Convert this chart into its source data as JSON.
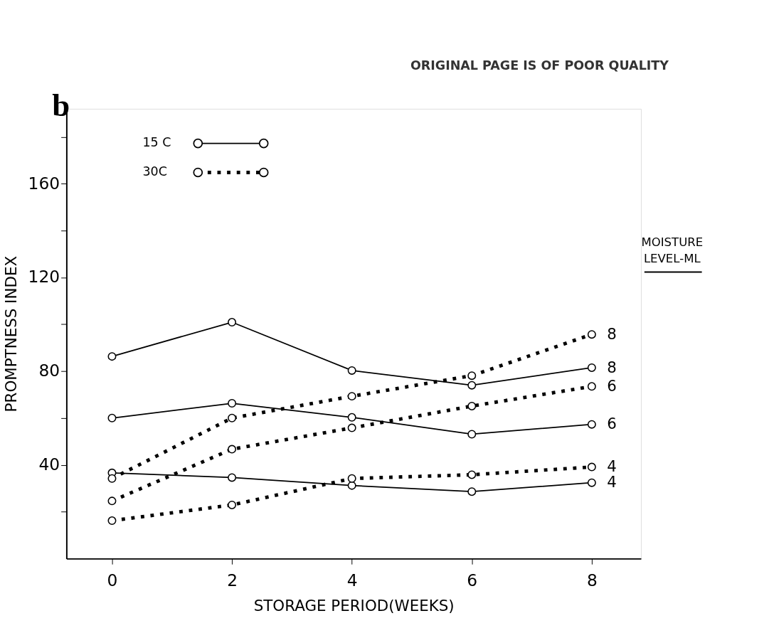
{
  "chart_data": {
    "type": "line",
    "title": "b",
    "xlabel": "STORAGE PERIOD(WEEKS)",
    "ylabel": "PROMPTNESS INDEX",
    "x": [
      0,
      2,
      4,
      6,
      8
    ],
    "series": [
      {
        "name": "8",
        "color": "#000000",
        "line_style": "solid",
        "values": [
          86.3,
          100.9,
          80.3,
          74.0,
          81.5
        ]
      },
      {
        "name": "6",
        "color": "#000000",
        "line_style": "solid",
        "values": [
          60.0,
          66.3,
          60.3,
          53.1,
          57.3
        ]
      },
      {
        "name": "4",
        "color": "#000000",
        "line_style": "solid",
        "values": [
          36.6,
          34.6,
          31.2,
          28.6,
          32.4
        ]
      },
      {
        "name": "8",
        "color": "#000000",
        "line_style": "dotted",
        "values": [
          34.2,
          60.0,
          69.3,
          78.1,
          95.7
        ]
      },
      {
        "name": "6",
        "color": "#000000",
        "line_style": "dotted",
        "values": [
          24.6,
          46.7,
          55.8,
          65.1,
          73.5
        ]
      },
      {
        "name": "4",
        "color": "#000000",
        "line_style": "dotted",
        "values": [
          16.2,
          22.9,
          34.2,
          35.8,
          39.1
        ]
      }
    ],
    "xlim": [
      -0.76,
      8.82
    ],
    "xticks": [
      0,
      2,
      4,
      6,
      8
    ],
    "ylim": [
      0,
      192
    ],
    "yticks": [
      {
        "value": 20,
        "label": null
      },
      40,
      {
        "value": 60,
        "label": null
      },
      80,
      {
        "value": 100,
        "label": null
      },
      120,
      {
        "value": 140,
        "label": null
      },
      160,
      {
        "value": 180,
        "label": null
      }
    ],
    "legend_title": "MOISTURE LEVEL-ML",
    "annotations": [
      "15 C",
      "30C",
      "ORIGINAL PAGE IS OF POOR QUALITY"
    ],
    "marker": "circle",
    "grid": false
  }
}
